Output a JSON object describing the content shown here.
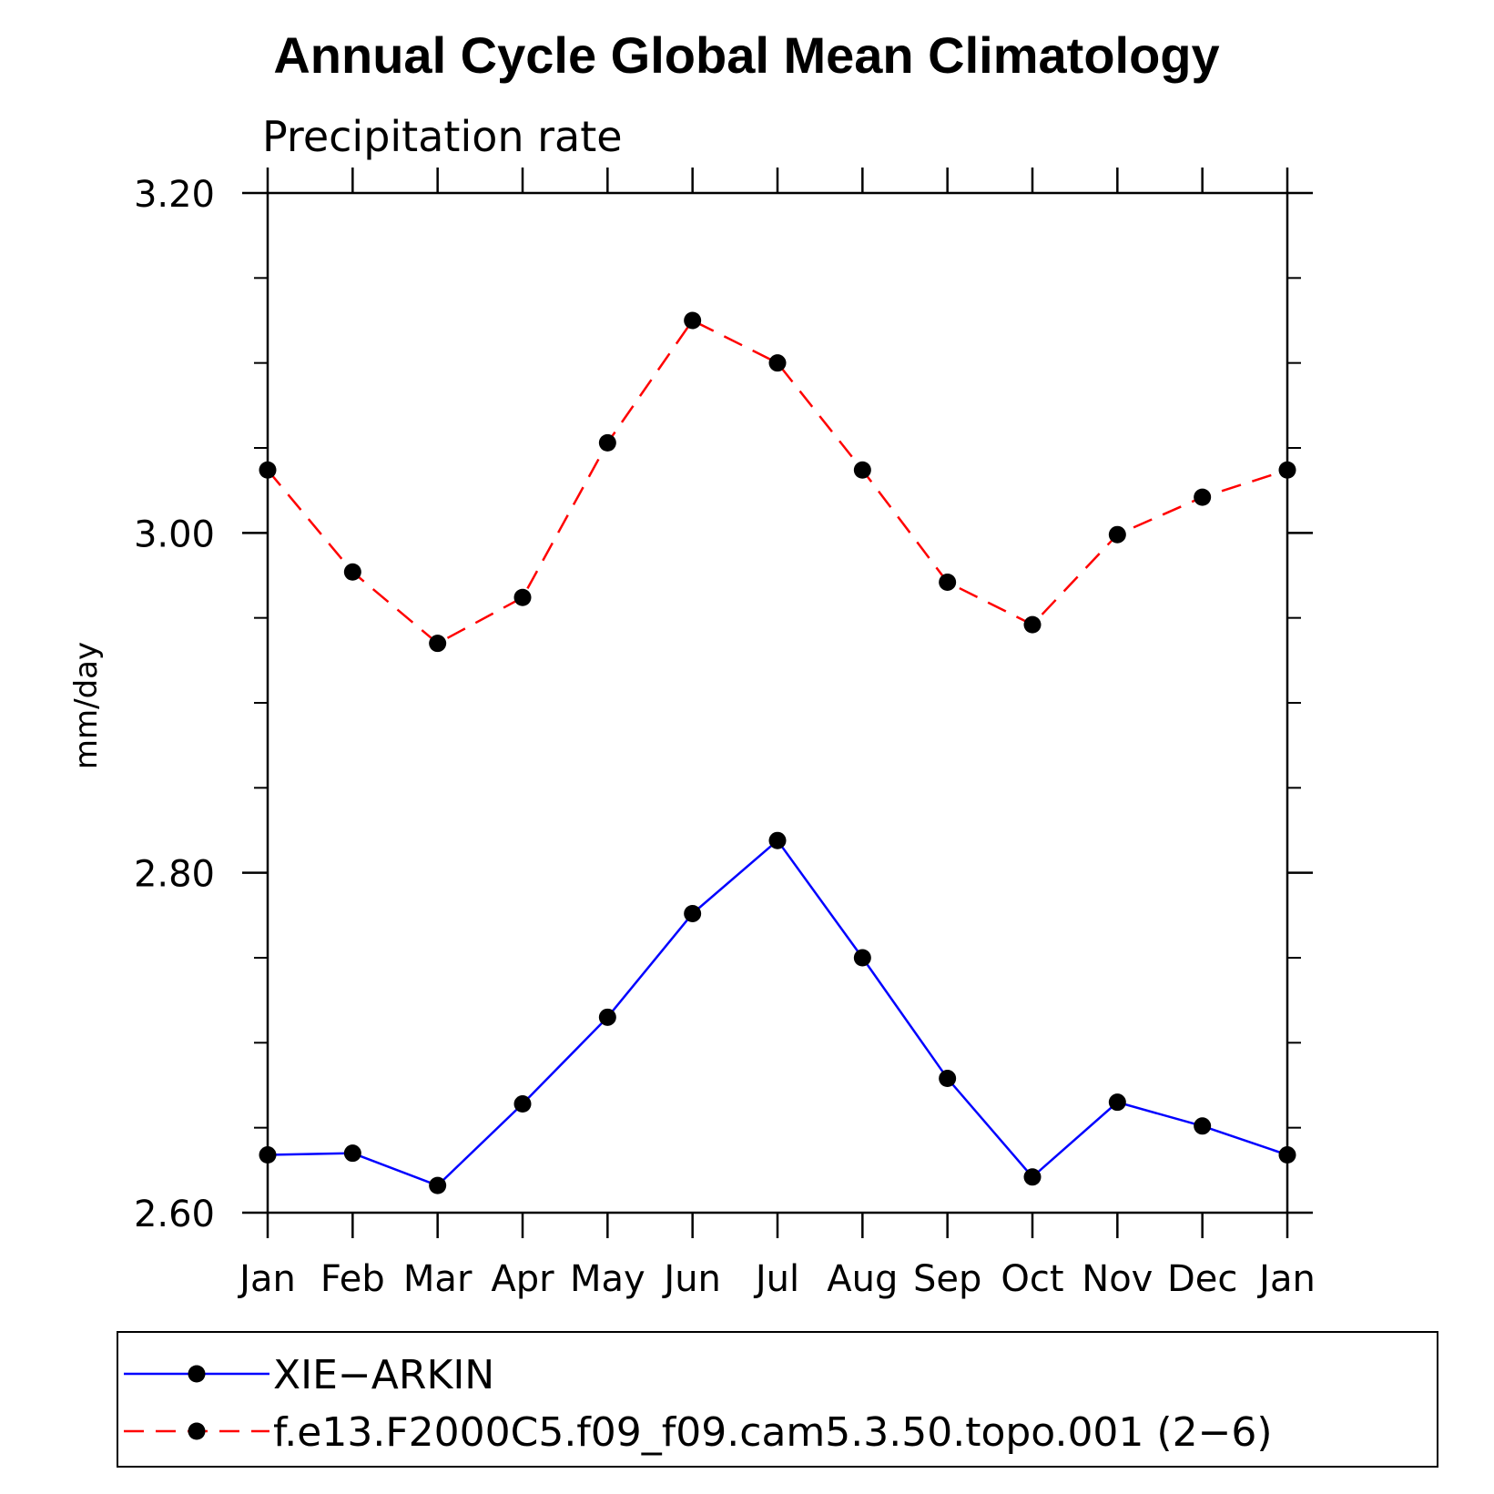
{
  "chart_data": {
    "type": "line",
    "title": "Annual Cycle Global Mean Climatology",
    "subtitle": "Precipitation rate",
    "ylabel": "mm/day",
    "xlabel": "",
    "categories": [
      "Jan",
      "Feb",
      "Mar",
      "Apr",
      "May",
      "Jun",
      "Jul",
      "Aug",
      "Sep",
      "Oct",
      "Nov",
      "Dec",
      "Jan"
    ],
    "ylim": [
      2.6,
      3.2
    ],
    "yticks_major": [
      "3.20",
      "3.00",
      "2.80",
      "2.60"
    ],
    "y_minor_step": 0.05,
    "grid": false,
    "legend_position": "bottom",
    "series": [
      {
        "name": "XIE−ARKIN",
        "color": "#0000ff",
        "dash": "solid",
        "marker": "filled-circle",
        "values": [
          2.634,
          2.635,
          2.616,
          2.664,
          2.715,
          2.776,
          2.819,
          2.75,
          2.679,
          2.621,
          2.665,
          2.651,
          2.634
        ]
      },
      {
        "name": "f.e13.F2000C5.f09_f09.cam5.3.50.topo.001 (2−6)",
        "color": "#ff0000",
        "dash": "dashed",
        "marker": "filled-circle",
        "values": [
          3.037,
          2.977,
          2.935,
          2.962,
          3.053,
          3.125,
          3.1,
          3.037,
          2.971,
          2.946,
          2.999,
          3.021,
          3.037
        ]
      }
    ]
  }
}
